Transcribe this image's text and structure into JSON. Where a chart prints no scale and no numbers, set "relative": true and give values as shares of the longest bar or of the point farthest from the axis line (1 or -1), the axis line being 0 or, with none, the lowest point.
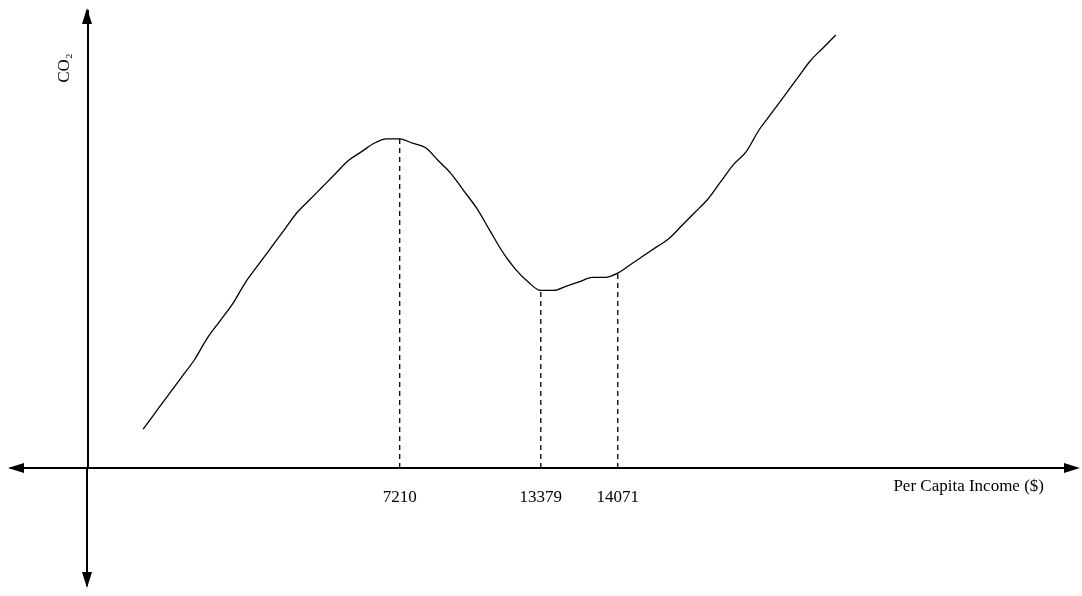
{
  "chart_data": {
    "type": "line",
    "relative": true,
    "xlabel": "Per Capita Income ($)",
    "ylabel": "CO₂",
    "color": "#000000",
    "line_style": "solid",
    "categories": [
      null,
      null,
      null,
      null,
      null,
      null,
      null,
      null,
      null,
      null,
      null,
      null,
      null,
      null,
      null,
      null,
      null,
      null,
      null,
      null,
      "7210",
      null,
      null,
      null,
      null,
      null,
      null,
      null,
      null,
      null,
      null,
      "13379",
      null,
      null,
      null,
      null,
      null,
      "14071",
      null,
      null,
      null,
      null,
      null,
      null,
      null,
      null,
      null,
      null,
      null,
      null,
      null,
      null,
      null,
      null,
      null
    ],
    "values": [
      0.09,
      0.13,
      0.17,
      0.21,
      0.25,
      0.3,
      0.34,
      0.38,
      0.43,
      0.47,
      0.51,
      0.55,
      0.59,
      0.62,
      0.65,
      0.68,
      0.71,
      0.73,
      0.75,
      0.76,
      0.76,
      0.75,
      0.74,
      0.71,
      0.68,
      0.64,
      0.6,
      0.55,
      0.5,
      0.46,
      0.43,
      0.41,
      0.41,
      0.42,
      0.43,
      0.44,
      0.44,
      0.45,
      0.47,
      0.49,
      0.51,
      0.53,
      0.56,
      0.59,
      0.62,
      0.66,
      0.7,
      0.73,
      0.78,
      0.82,
      0.86,
      0.9,
      0.94,
      0.97,
      1
    ],
    "ref_lines": [
      {
        "axis": "x",
        "value": "7210",
        "line_style": "dashed"
      },
      {
        "axis": "x",
        "value": "13379",
        "line_style": "dashed"
      },
      {
        "axis": "x",
        "value": "14071",
        "line_style": "dashed"
      }
    ]
  }
}
